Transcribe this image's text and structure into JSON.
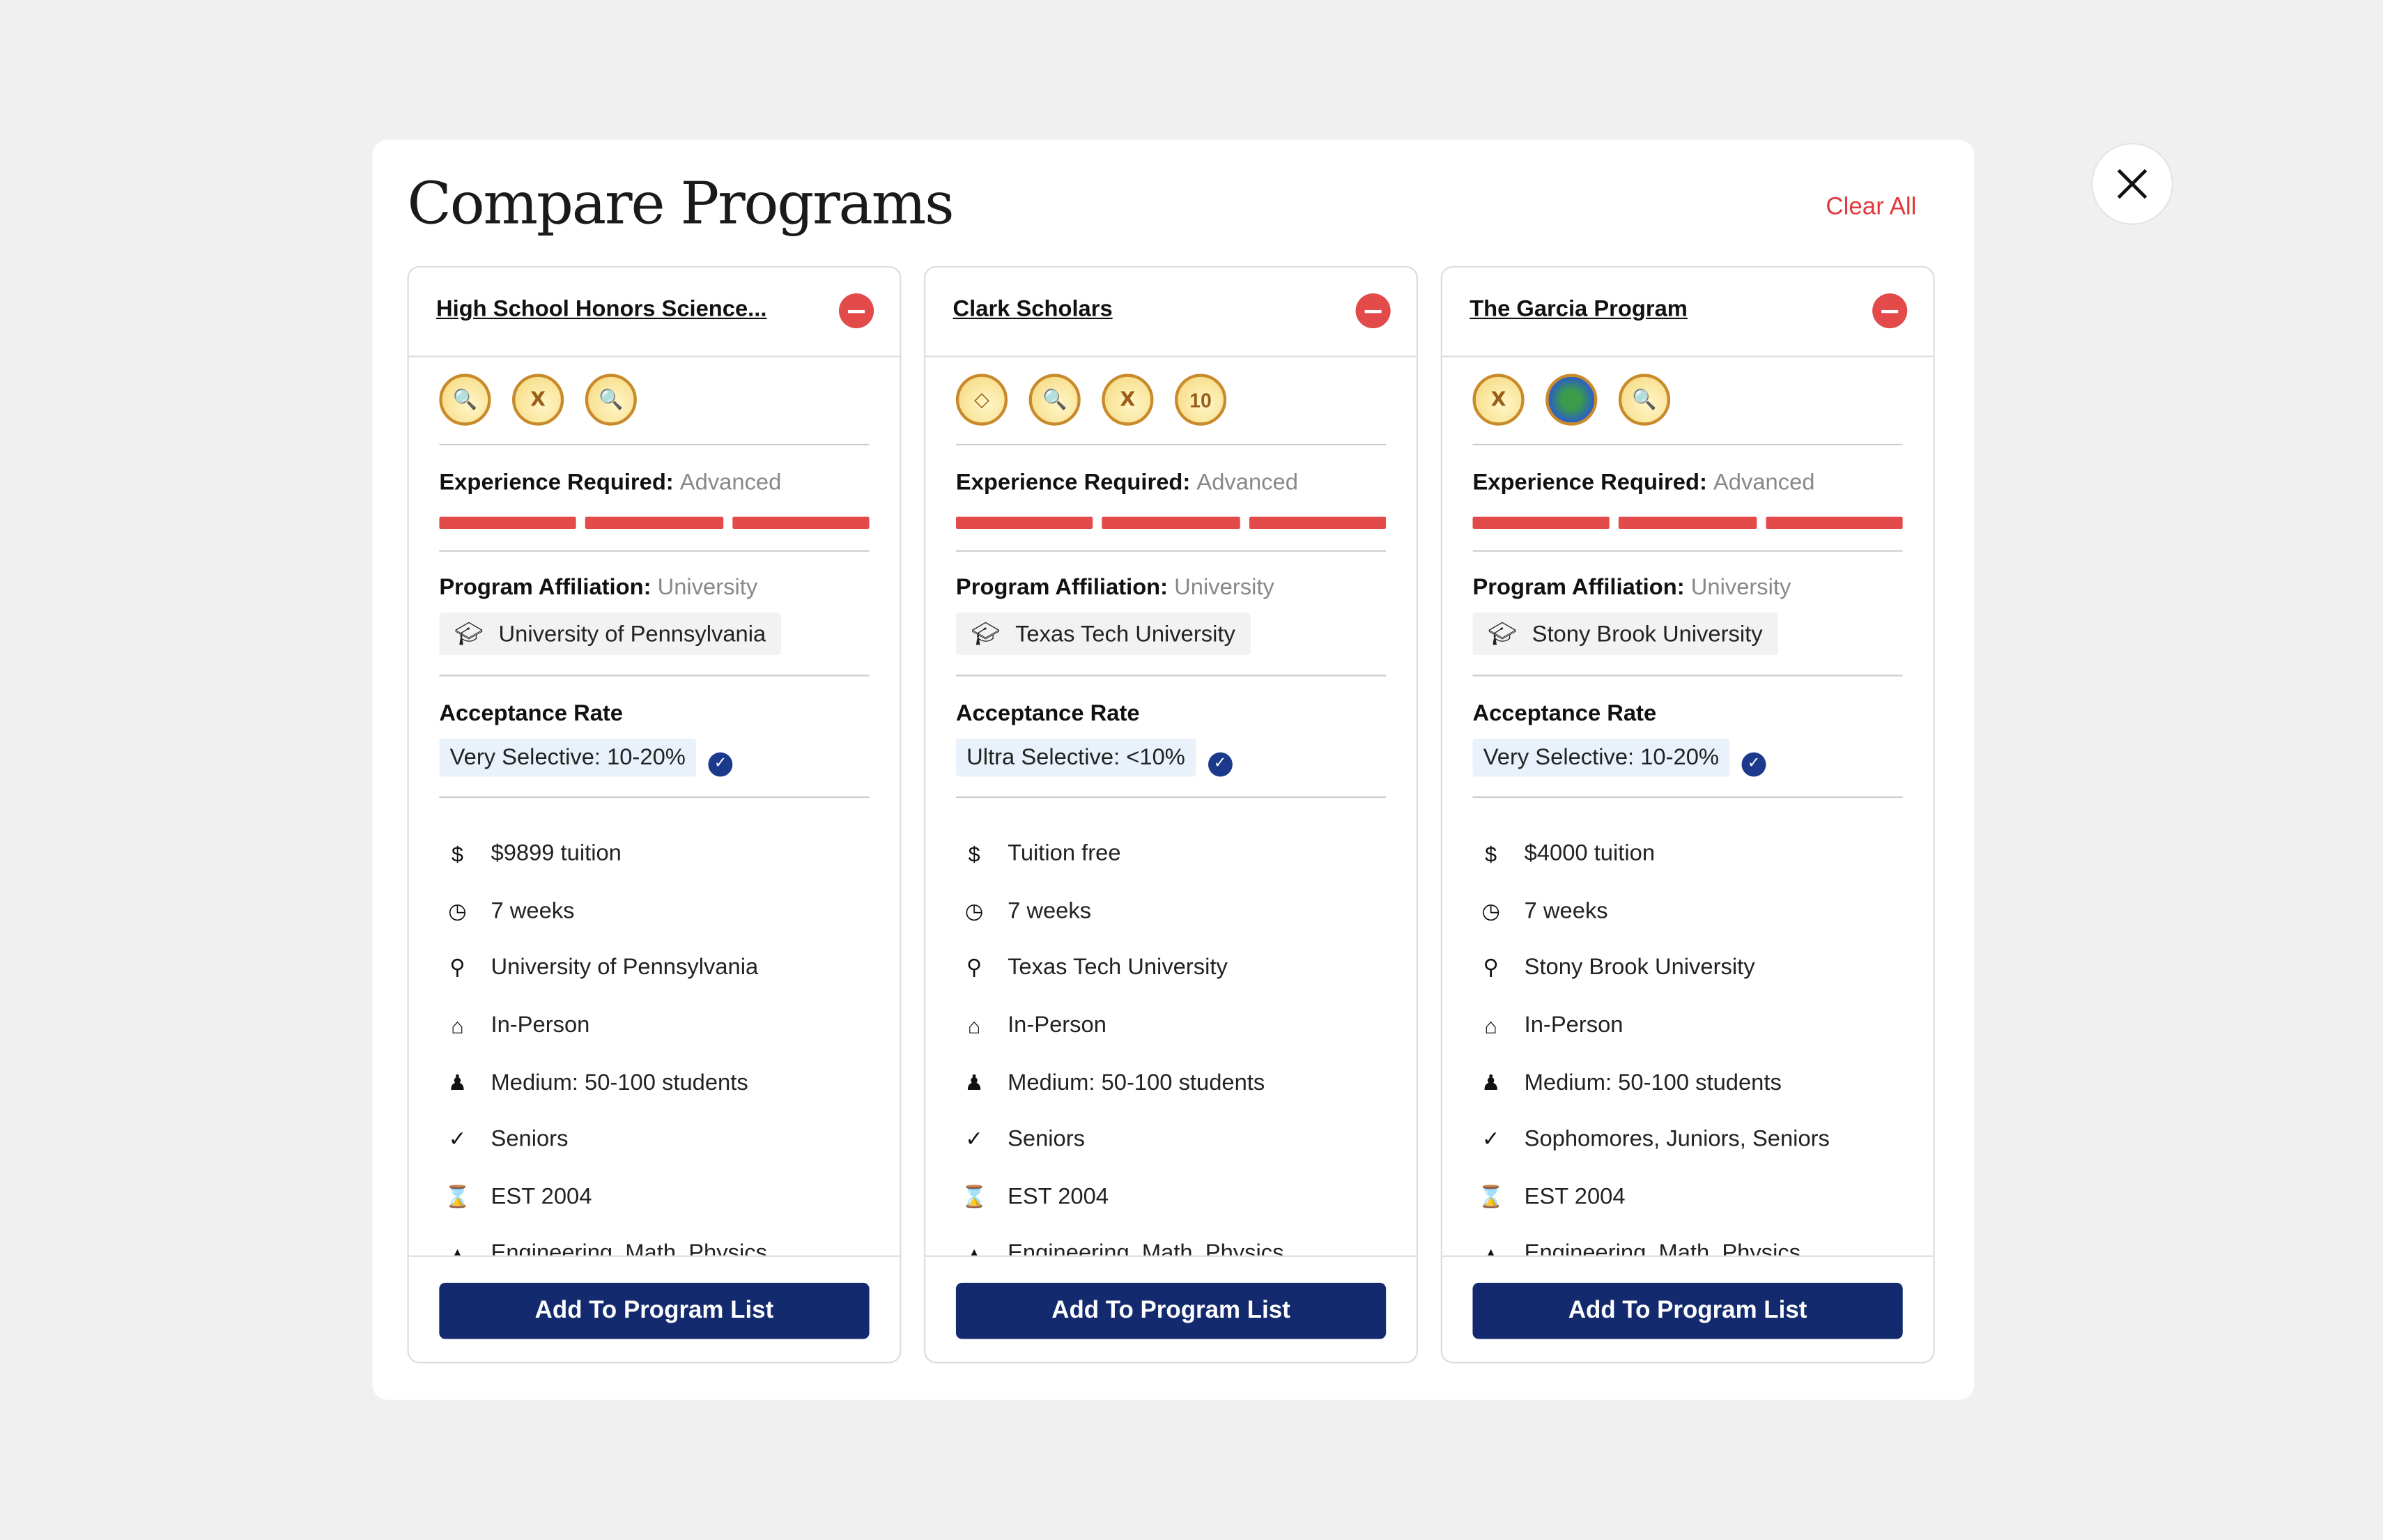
{
  "modal": {
    "title": "Compare Programs",
    "clear_all": "Clear All"
  },
  "colors": {
    "accent_red": "#e34b4b",
    "button_navy": "#132a6e"
  },
  "labels": {
    "experience": "Experience Required:",
    "affiliation": "Program Affiliation:",
    "acceptance": "Acceptance Rate",
    "add_button": "Add To Program List"
  },
  "programs": [
    {
      "name": "High School Honors Science...",
      "badges": [
        "document-search",
        "column",
        "document-search"
      ],
      "experience": "Advanced",
      "experience_level": 3,
      "affiliation_type": "University",
      "affiliation": "University of Pennsylvania",
      "acceptance": "Very Selective: 10-20%",
      "details": [
        "$9899 tuition",
        "7 weeks",
        "University of Pennsylvania",
        "In-Person",
        "Medium: 50-100 students",
        "Seniors",
        "EST 2004",
        "Engineering, Math, Physics"
      ]
    },
    {
      "name": "Clark Scholars",
      "badges": [
        "diamond",
        "document-search",
        "column",
        "10"
      ],
      "experience": "Advanced",
      "experience_level": 3,
      "affiliation_type": "University",
      "affiliation": "Texas Tech University",
      "acceptance": "Ultra Selective: <10%",
      "details": [
        "Tuition free",
        "7 weeks",
        "Texas Tech University",
        "In-Person",
        "Medium: 50-100 students",
        "Seniors",
        "EST 2004",
        "Engineering, Math, Physics"
      ]
    },
    {
      "name": "The Garcia Program",
      "badges": [
        "column",
        "globe",
        "document-search"
      ],
      "experience": "Advanced",
      "experience_level": 3,
      "affiliation_type": "University",
      "affiliation": "Stony Brook University",
      "acceptance": "Very Selective: 10-20%",
      "details": [
        "$4000 tuition",
        "7 weeks",
        "Stony Brook University",
        "In-Person",
        "Medium: 50-100 students",
        "Sophomores, Juniors, Seniors",
        "EST 2004",
        "Engineering, Math, Physics"
      ]
    }
  ]
}
